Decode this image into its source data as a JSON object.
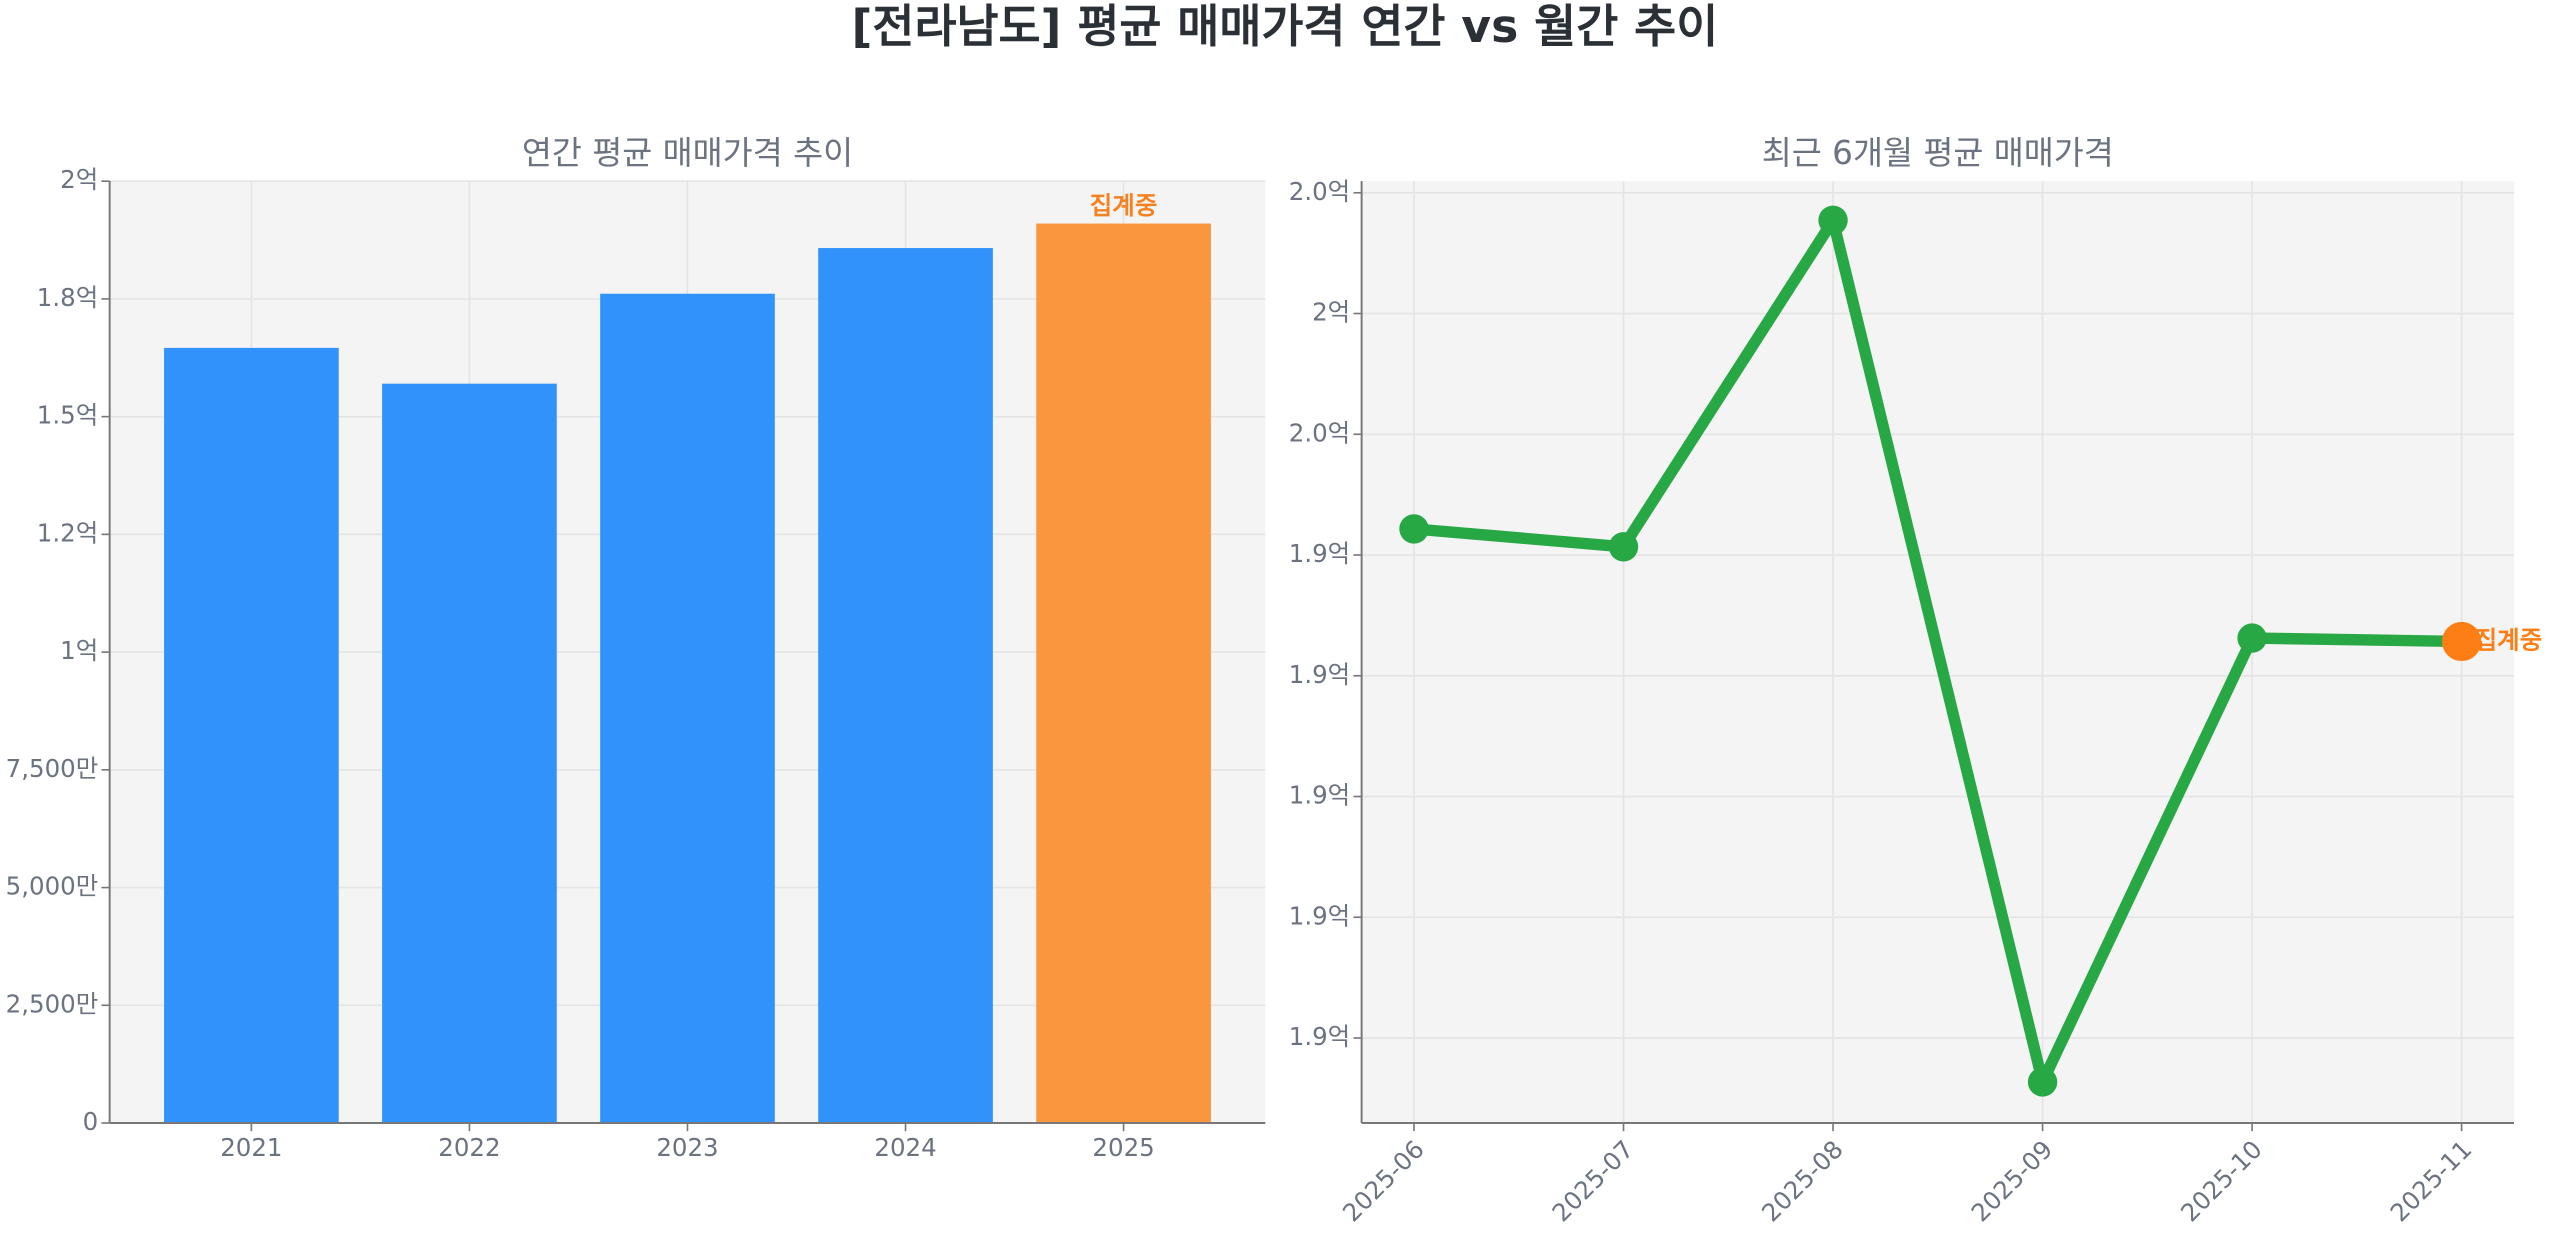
{
  "title": "[전라남도] 평균 매매가격 연간 vs 월간 추이",
  "chart_data": [
    {
      "type": "bar",
      "title": "연간 평균 매매가격 추이",
      "categories": [
        "2021",
        "2022",
        "2023",
        "2024",
        "2025"
      ],
      "values": [
        164600000,
        157000000,
        176100000,
        185800000,
        191000000
      ],
      "colors": [
        "#3192fb",
        "#3192fb",
        "#3192fb",
        "#3192fb",
        "#f9963e"
      ],
      "annotation": {
        "text": "집계중",
        "index": 4,
        "color": "#f5821f"
      },
      "ylim": [
        0,
        200000000
      ],
      "yticks": [
        0,
        {
          "value": 25000000,
          "label": "2,500만"
        },
        {
          "value": 50000000,
          "label": "5,000만"
        },
        {
          "value": 75000000,
          "label": "7,500만"
        },
        {
          "value": 100000000,
          "label": "1억"
        },
        {
          "value": 125000000,
          "label": "1.2억"
        },
        {
          "value": 150000000,
          "label": "1.5억"
        },
        {
          "value": 175000000,
          "label": "1.8억"
        },
        {
          "value": 200000000,
          "label": "2억"
        }
      ],
      "grid": true
    },
    {
      "type": "line",
      "title": "최근 6개월 평균 매매가격",
      "x": [
        "2025-06",
        "2025-07",
        "2025-08",
        "2025-09",
        "2025-10",
        "2025-11"
      ],
      "values": [
        195540000,
        195170000,
        201930000,
        184090000,
        193280000,
        193210000
      ],
      "color": "#28a745",
      "annotation": {
        "text": "집계중",
        "index": 5,
        "color": "#fd7e14"
      },
      "ylim": [
        183240000,
        202740000
      ],
      "yticks": [
        {
          "value": 185000000,
          "label": "1.9억"
        },
        {
          "value": 187500000,
          "label": "1.9억"
        },
        {
          "value": 190000000,
          "label": "1.9억"
        },
        {
          "value": 192500000,
          "label": "1.9억"
        },
        {
          "value": 195000000,
          "label": "1.9억"
        },
        {
          "value": 197500000,
          "label": "2.0억"
        },
        {
          "value": 200000000,
          "label": "2억"
        },
        {
          "value": 202500000,
          "label": "2.0억"
        }
      ],
      "grid": true
    }
  ]
}
